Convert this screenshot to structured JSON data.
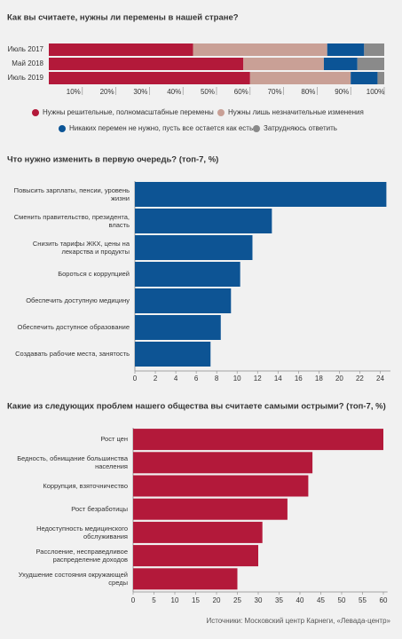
{
  "chart_data": [
    {
      "type": "stacked_bar",
      "title": "Как вы считаете, нужны ли перемены в нашей стране?",
      "categories": [
        "Июль 2017",
        "Май 2018",
        "Июль 2019"
      ],
      "series": [
        {
          "name": "Нужны решительные, полномасштабные перемены",
          "color": "#b3193a",
          "values": [
            43,
            58,
            60
          ]
        },
        {
          "name": "Нужны лишь незначительные изменения",
          "color": "#c9a096",
          "values": [
            40,
            24,
            30
          ]
        },
        {
          "name": "Никаких перемен не нужно, пусть все остается как есть",
          "color": "#0b5496",
          "values": [
            11,
            10,
            8
          ]
        },
        {
          "name": "Затрудняюсь ответить",
          "color": "#8a8a8a",
          "values": [
            6,
            8,
            2
          ]
        }
      ],
      "xlim": [
        0,
        100
      ],
      "xticks": [
        {
          "value": 10,
          "label": "10%"
        },
        {
          "value": 20,
          "label": "20%"
        },
        {
          "value": 30,
          "label": "30%"
        },
        {
          "value": 40,
          "label": "40%"
        },
        {
          "value": 50,
          "label": "50%"
        },
        {
          "value": 60,
          "label": "60%"
        },
        {
          "value": 70,
          "label": "70%"
        },
        {
          "value": 80,
          "label": "80%"
        },
        {
          "value": 90,
          "label": "90%"
        },
        {
          "value": 100,
          "label": "100%"
        }
      ]
    },
    {
      "type": "bar",
      "title": "Что нужно изменить в первую очередь? (топ-7, %)",
      "categories": [
        "Повысить зарплаты, пенсии, уровень жизни",
        "Сменить правительство, президента, власть",
        "Снизить тарифы ЖКХ, цены на лекарства и продукты",
        "Бороться с коррупцией",
        "Обеспечить доступную медицину",
        "Обеспечить доступное образование",
        "Создавать рабочие места, занятость"
      ],
      "values": [
        24.6,
        13.4,
        11.5,
        10.3,
        9.4,
        8.4,
        7.4
      ],
      "color": "#0d5494",
      "xlim": [
        0,
        25
      ],
      "xticks": [
        0,
        2,
        4,
        6,
        8,
        10,
        12,
        14,
        16,
        18,
        20,
        22,
        24
      ]
    },
    {
      "type": "bar",
      "title": "Какие из следующих проблем нашего общества вы считаете самыми острыми? (топ-7, %)",
      "categories": [
        "Рост цен",
        "Бедность, обнищание большинства населения",
        "Коррупция, взяточничество",
        "Рост безработицы",
        "Недоступность медицинского обслуживания",
        "Расслоение, несправедливое распределение доходов",
        "Ухудшение состояния окружающей среды"
      ],
      "values": [
        60,
        43,
        42,
        37,
        31,
        30,
        25
      ],
      "color": "#b3193a",
      "xlim": [
        0,
        61
      ],
      "xticks": [
        0,
        5,
        10,
        15,
        20,
        25,
        30,
        35,
        40,
        45,
        50,
        55,
        60
      ]
    }
  ],
  "source": "Источники: Московский центр Карнеги, «Левада-центр»"
}
